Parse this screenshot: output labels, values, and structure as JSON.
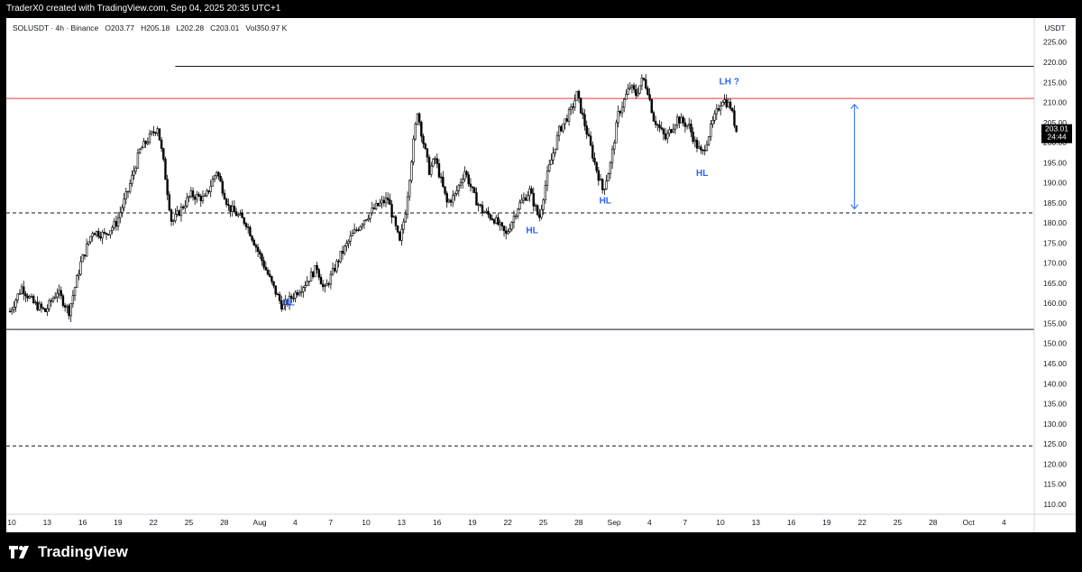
{
  "header": {
    "attribution": "TraderX0 created with TradingView.com, Sep 04, 2025 20:35 UTC+1"
  },
  "legend": {
    "symbol": "SOLUSDT · 4h · Binance",
    "o_label": "O",
    "o": "203.77",
    "h_label": "H",
    "h": "205.18",
    "l_label": "L",
    "l": "202.28",
    "c_label": "C",
    "c": "203.01",
    "vol_label": "Vol",
    "vol": "350.97 K"
  },
  "brand": {
    "name": "TradingView"
  },
  "colors": {
    "background": "#ffffff",
    "candle": "#000000",
    "resistance_red": "#f23645",
    "annotation_blue": "#2962ff",
    "price_label_bg": "#000000"
  },
  "chart_data": {
    "type": "candlestick",
    "symbol": "SOLUSDT",
    "timeframe": "4h",
    "exchange": "Binance",
    "currency": "USDT",
    "ylim": [
      107.5,
      231
    ],
    "y_ticks": [
      110,
      115,
      120,
      125,
      130,
      135,
      140,
      145,
      150,
      155,
      160,
      165,
      170,
      175,
      180,
      185,
      190,
      195,
      200,
      205,
      210,
      215,
      220,
      225
    ],
    "x_ticks": [
      "10",
      "13",
      "16",
      "19",
      "22",
      "25",
      "28",
      "Aug",
      "4",
      "7",
      "10",
      "13",
      "16",
      "19",
      "22",
      "25",
      "28",
      "Sep",
      "4",
      "7",
      "10",
      "13",
      "16",
      "19",
      "22",
      "25",
      "28",
      "Oct",
      "4"
    ],
    "x_start_day": 10,
    "last_price": "203.01",
    "countdown": "24:44",
    "anchors": [
      [
        10,
        158
      ],
      [
        11,
        164
      ],
      [
        12,
        160
      ],
      [
        13,
        158
      ],
      [
        14,
        163
      ],
      [
        15,
        158
      ],
      [
        16,
        170
      ],
      [
        17,
        178
      ],
      [
        18,
        177
      ],
      [
        19,
        180
      ],
      [
        20,
        188
      ],
      [
        21,
        198
      ],
      [
        22.5,
        204
      ],
      [
        23,
        195
      ],
      [
        23.7,
        180
      ],
      [
        25.3,
        187
      ],
      [
        26.5,
        186
      ],
      [
        27.5,
        193
      ],
      [
        28.5,
        184
      ],
      [
        30,
        180
      ],
      [
        31,
        173
      ],
      [
        32.3,
        164
      ],
      [
        33.1,
        159
      ],
      [
        34,
        162
      ],
      [
        35,
        165
      ],
      [
        36,
        169
      ],
      [
        36.6,
        163
      ],
      [
        38,
        172
      ],
      [
        39,
        177
      ],
      [
        40,
        181
      ],
      [
        41,
        184
      ],
      [
        42,
        186
      ],
      [
        43,
        175
      ],
      [
        43.5,
        183
      ],
      [
        44,
        196
      ],
      [
        44.5,
        208
      ],
      [
        45,
        200
      ],
      [
        45.5,
        193
      ],
      [
        46,
        196
      ],
      [
        47,
        185
      ],
      [
        47.7,
        187
      ],
      [
        48.5,
        193
      ],
      [
        49.4,
        186
      ],
      [
        50,
        183
      ],
      [
        51,
        181
      ],
      [
        52,
        177
      ],
      [
        53,
        184
      ],
      [
        54,
        188
      ],
      [
        54.8,
        181
      ],
      [
        55.5,
        192
      ],
      [
        56.5,
        203
      ],
      [
        57.5,
        208
      ],
      [
        58,
        212
      ],
      [
        58.8,
        203
      ],
      [
        59.5,
        195
      ],
      [
        60.2,
        188
      ],
      [
        60.8,
        194
      ],
      [
        61.5,
        207
      ],
      [
        62.5,
        214
      ],
      [
        63,
        212
      ],
      [
        63.6,
        216
      ],
      [
        64,
        213
      ],
      [
        64.5,
        206
      ],
      [
        65.5,
        201
      ],
      [
        66.5,
        206
      ],
      [
        67.5,
        204
      ],
      [
        68,
        200
      ],
      [
        68.6,
        197
      ],
      [
        69.5,
        205
      ],
      [
        70.3,
        211
      ],
      [
        71,
        209
      ],
      [
        71.5,
        203
      ]
    ],
    "horizontal_levels": [
      {
        "price": 219,
        "style": "solid",
        "color": "#131722",
        "extends_from": 24
      },
      {
        "price": 211,
        "style": "solid",
        "color": "#f23645",
        "extends_from": null
      },
      {
        "price": 182.5,
        "style": "dashed",
        "color": "#131722",
        "extends_from": null
      },
      {
        "price": 153.5,
        "style": "solid",
        "color": "#131722",
        "extends_from": null
      },
      {
        "price": 124.5,
        "style": "dashed",
        "color": "#131722",
        "extends_from": null
      }
    ],
    "measure_arrow": {
      "x_day": 81.5,
      "from": 209.5,
      "to": 183.5
    },
    "annotations": [
      {
        "text": "HL",
        "x_day": 33.6,
        "price": 159.5
      },
      {
        "text": "HL",
        "x_day": 54.2,
        "price": 177.5
      },
      {
        "text": "HL",
        "x_day": 60.4,
        "price": 184.8
      },
      {
        "text": "HL",
        "x_day": 68.6,
        "price": 191.7
      },
      {
        "text": "LH  ?",
        "x_day": 70.9,
        "price": 214.5
      }
    ]
  }
}
